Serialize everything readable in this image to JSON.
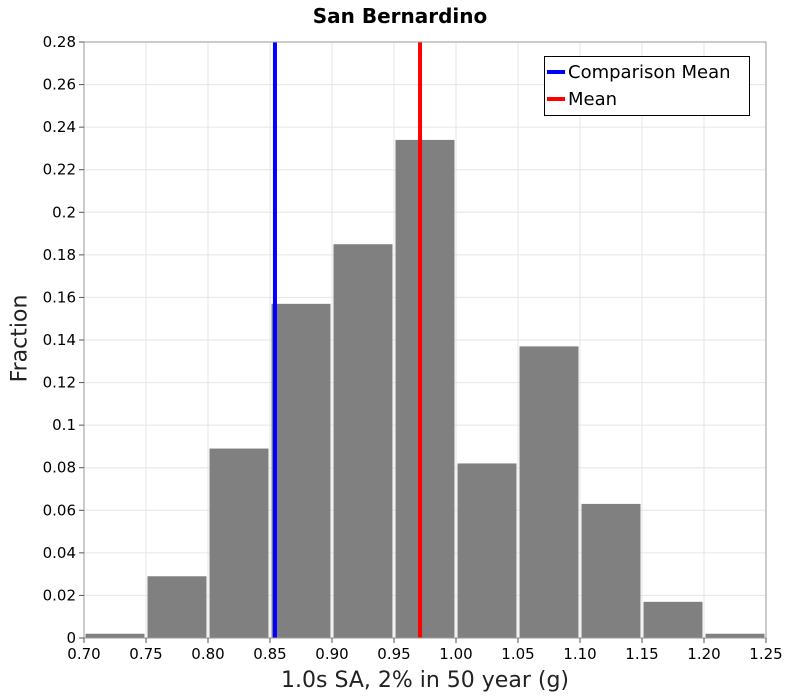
{
  "chart_data": {
    "type": "bar",
    "title": "San Bernardino",
    "xlabel": "1.0s SA, 2% in 50 year (g)",
    "ylabel": "Fraction",
    "xlim": [
      0.7,
      1.25
    ],
    "ylim": [
      0,
      0.28
    ],
    "xticks": [
      "0.70",
      "0.75",
      "0.80",
      "0.85",
      "0.90",
      "0.95",
      "1.00",
      "1.05",
      "1.10",
      "1.15",
      "1.20",
      "1.25"
    ],
    "yticks": [
      "0",
      "0.02",
      "0.04",
      "0.06",
      "0.08",
      "0.1",
      "0.12",
      "0.14",
      "0.16",
      "0.18",
      "0.2",
      "0.22",
      "0.24",
      "0.26",
      "0.28"
    ],
    "bins": [
      {
        "x0": 0.7,
        "x1": 0.75,
        "value": 0.002
      },
      {
        "x0": 0.75,
        "x1": 0.8,
        "value": 0.029
      },
      {
        "x0": 0.8,
        "x1": 0.85,
        "value": 0.089
      },
      {
        "x0": 0.85,
        "x1": 0.9,
        "value": 0.157
      },
      {
        "x0": 0.9,
        "x1": 0.95,
        "value": 0.185
      },
      {
        "x0": 0.95,
        "x1": 1.0,
        "value": 0.234
      },
      {
        "x0": 1.0,
        "x1": 1.05,
        "value": 0.082
      },
      {
        "x0": 1.05,
        "x1": 1.1,
        "value": 0.137
      },
      {
        "x0": 1.1,
        "x1": 1.15,
        "value": 0.063
      },
      {
        "x0": 1.15,
        "x1": 1.2,
        "value": 0.017
      },
      {
        "x0": 1.2,
        "x1": 1.25,
        "value": 0.002
      }
    ],
    "bar_color": "#808080",
    "reference_lines": [
      {
        "name": "Comparison Mean",
        "x": 0.854,
        "color": "#0000ff"
      },
      {
        "name": "Mean",
        "x": 0.971,
        "color": "#ff0000"
      }
    ],
    "grid": true,
    "legend_position": "top-right"
  }
}
